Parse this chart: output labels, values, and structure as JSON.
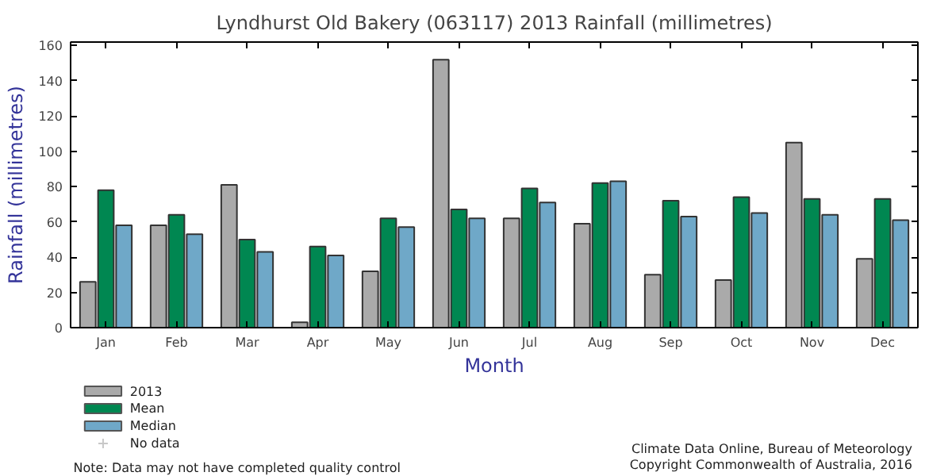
{
  "chart_data": {
    "type": "bar",
    "title": "Lyndhurst Old Bakery (063117) 2013 Rainfall (millimetres)",
    "xlabel": "Month",
    "ylabel": "Rainfall (millimetres)",
    "categories": [
      "Jan",
      "Feb",
      "Mar",
      "Apr",
      "May",
      "Jun",
      "Jul",
      "Aug",
      "Sep",
      "Oct",
      "Nov",
      "Dec"
    ],
    "series": [
      {
        "name": "2013",
        "color": "#aaaaaa",
        "values": [
          26,
          58,
          81,
          3,
          32,
          152,
          62,
          59,
          30,
          27,
          105,
          39
        ]
      },
      {
        "name": "Mean",
        "color": "#008751",
        "values": [
          78,
          64,
          50,
          46,
          62,
          67,
          79,
          82,
          72,
          74,
          73,
          73
        ]
      },
      {
        "name": "Median",
        "color": "#6fa8c8",
        "values": [
          58,
          53,
          43,
          41,
          57,
          62,
          71,
          83,
          63,
          65,
          64,
          61
        ]
      },
      {
        "name": "No data",
        "color": "#c8c8c8",
        "type": "scatter",
        "marker": "cross",
        "values": [
          null,
          null,
          null,
          null,
          null,
          null,
          null,
          null,
          null,
          null,
          null,
          null
        ]
      }
    ],
    "ylim": [
      0,
      162
    ],
    "yticks": [
      0,
      20,
      40,
      60,
      80,
      100,
      120,
      140,
      160
    ],
    "legend": "bottom left",
    "annotations": [
      "Note: Data may not have completed quality control",
      "Climate Data Online, Bureau of Meteorology",
      "Copyright Commonwealth of Australia, 2016"
    ]
  }
}
